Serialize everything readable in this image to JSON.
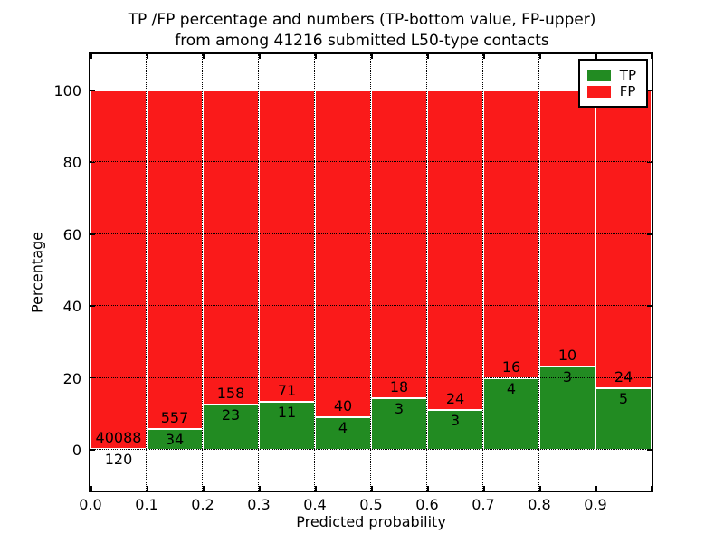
{
  "title": {
    "line1": "TP /FP percentage and numbers (TP-bottom value, FP-upper)",
    "line2": "from among 41216 submitted L50-type contacts"
  },
  "axes": {
    "xlabel": "Predicted probability",
    "ylabel": "Percentage",
    "x_tick_labels": [
      "0.0",
      "0.1",
      "0.2",
      "0.3",
      "0.4",
      "0.5",
      "0.6",
      "0.7",
      "0.8",
      "0.9"
    ],
    "x_tick_values": [
      0,
      0.1,
      0.2,
      0.3,
      0.4,
      0.5,
      0.6,
      0.7,
      0.8,
      0.9
    ],
    "y_tick_labels": [
      "0",
      "20",
      "40",
      "60",
      "80",
      "100"
    ],
    "y_tick_values": [
      0,
      20,
      40,
      60,
      80,
      100
    ],
    "xlim": [
      0.0,
      1.0
    ],
    "ylim": [
      -11.35,
      110.1
    ],
    "grid_style": "dotted"
  },
  "legend": {
    "position": "upper right",
    "items": [
      {
        "label": "TP",
        "color": "#228b22"
      },
      {
        "label": "FP",
        "color": "#fa1a1a"
      }
    ]
  },
  "chart_data": {
    "type": "bar",
    "stacked": true,
    "normalization": "each bin stacked to 100 percent",
    "total_submitted": 41216,
    "bin_width": 0.1,
    "bin_ranges": [
      "0.0-0.1",
      "0.1-0.2",
      "0.2-0.3",
      "0.3-0.4",
      "0.4-0.5",
      "0.5-0.6",
      "0.6-0.7",
      "0.7-0.8",
      "0.8-0.9",
      "0.9-1.0"
    ],
    "series": [
      {
        "name": "TP",
        "color": "#228b22",
        "counts": [
          120,
          34,
          23,
          11,
          4,
          3,
          3,
          4,
          3,
          5
        ]
      },
      {
        "name": "FP",
        "color": "#fa1a1a",
        "counts": [
          40088,
          557,
          158,
          71,
          40,
          18,
          24,
          16,
          10,
          24
        ]
      }
    ],
    "tp_percent_by_bin": [
      0.3,
      5.75,
      12.71,
      13.41,
      9.09,
      14.29,
      11.11,
      20.0,
      23.08,
      17.24
    ],
    "title": "TP /FP percentage and numbers (TP-bottom value, FP-upper) from among 41216 submitted L50-type contacts",
    "xlabel": "Predicted probability",
    "ylabel": "Percentage",
    "legend_position": "upper right",
    "grid": true
  }
}
